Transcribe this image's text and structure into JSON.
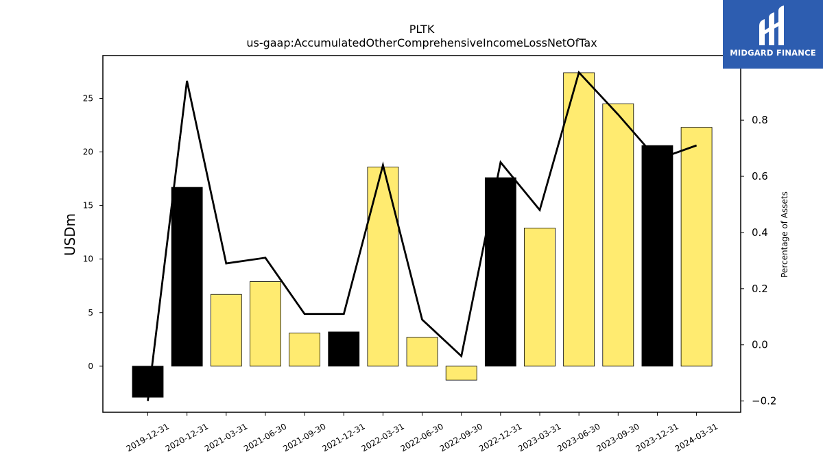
{
  "logo": {
    "text": "MIDGARD FINANCE"
  },
  "chart_data": {
    "type": "bar",
    "title": "PLTK",
    "subtitle": "us-gaap:AccumulatedOtherComprehensiveIncomeLossNetOfTax",
    "xlabel": "",
    "ylabel": "USDm",
    "y2label": "Percentage of Assets",
    "categories": [
      "2019-12-31",
      "2020-12-31",
      "2021-03-31",
      "2021-06-30",
      "2021-09-30",
      "2021-12-31",
      "2022-03-31",
      "2022-06-30",
      "2022-09-30",
      "2022-12-31",
      "2023-03-31",
      "2023-06-30",
      "2023-09-30",
      "2023-12-31",
      "2024-03-31"
    ],
    "series": [
      {
        "values": [
          -2.9,
          16.7,
          6.7,
          7.9,
          3.1,
          3.2,
          18.6,
          2.7,
          -1.3,
          17.6,
          12.9,
          27.4,
          24.5,
          20.6,
          22.3
        ],
        "colors": [
          "#000000",
          "#000000",
          "#ffeb70",
          "#ffeb70",
          "#ffeb70",
          "#000000",
          "#ffeb70",
          "#ffeb70",
          "#ffeb70",
          "#000000",
          "#ffeb70",
          "#ffeb70",
          "#ffeb70",
          "#000000",
          "#ffeb70"
        ],
        "axis": "left",
        "kind": "bar"
      },
      {
        "values": [
          -0.2,
          0.94,
          0.29,
          0.31,
          0.11,
          0.11,
          0.64,
          0.09,
          -0.04,
          0.65,
          0.48,
          0.97,
          0.82,
          0.66,
          0.71
        ],
        "color": "#000000",
        "axis": "right",
        "kind": "line"
      }
    ],
    "ylim": [
      -4.3,
      29.0
    ],
    "y2lim": [
      -0.24,
      1.03
    ],
    "yticks": [
      0,
      5,
      10,
      15,
      20,
      25
    ],
    "y2ticks": [
      -0.2,
      0.0,
      0.2,
      0.4,
      0.6,
      0.8
    ],
    "y2ticklabels": [
      "−0.2",
      "0.0",
      "0.2",
      "0.4",
      "0.6",
      "0.8"
    ],
    "grid": false,
    "legend": "none"
  }
}
